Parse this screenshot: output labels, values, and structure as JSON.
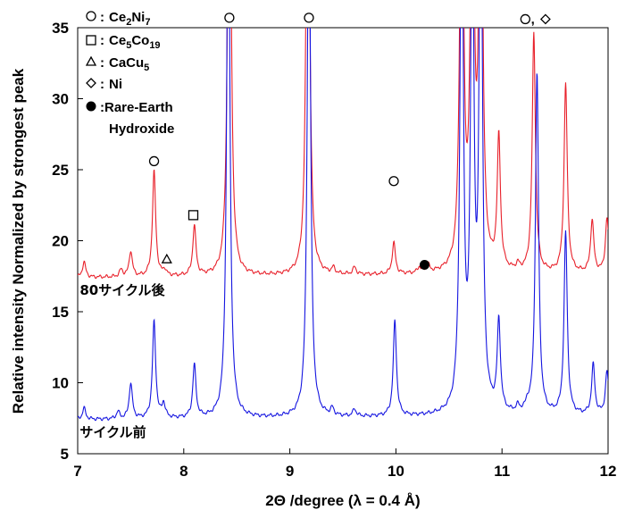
{
  "chart_data": {
    "type": "line",
    "title": "",
    "xlabel": "2Θ /degree (λ = 0.4 Å)",
    "ylabel": "Relative intensity Normalized by strongest peak",
    "xlim": [
      7,
      12
    ],
    "ylim": [
      5,
      35
    ],
    "xticks": [
      7,
      8,
      9,
      10,
      11,
      12
    ],
    "yticks": [
      5,
      10,
      15,
      20,
      25,
      30,
      35
    ],
    "grid": false,
    "legend": {
      "placement": "top-left",
      "entries": [
        {
          "symbol": "circle",
          "label": "Ce2Ni7",
          "base": "Ce",
          "sub1": "2",
          "mid": "Ni",
          "sub2": "7"
        },
        {
          "symbol": "square",
          "label": "Ce5Co19",
          "base": "Ce",
          "sub1": "5",
          "mid": "Co",
          "sub2": "19"
        },
        {
          "symbol": "triangle",
          "label": "CaCu5",
          "base": "CaCu",
          "sub1": "5",
          "mid": "",
          "sub2": ""
        },
        {
          "symbol": "diamond",
          "label": "Ni",
          "base": "Ni",
          "sub1": "",
          "mid": "",
          "sub2": ""
        },
        {
          "symbol": "filled-circle",
          "label": "Rare-Earth Hydroxide",
          "line1": "Rare-Earth",
          "line2": "Hydroxide"
        }
      ],
      "separator": ":"
    },
    "series": [
      {
        "name": "80サイクル後",
        "color": "#e8202a",
        "baseline": 17.4,
        "peaks": [
          {
            "x": 7.06,
            "h": 1.1
          },
          {
            "x": 7.41,
            "h": 0.5
          },
          {
            "x": 7.5,
            "h": 1.8
          },
          {
            "x": 7.72,
            "h": 7.4
          },
          {
            "x": 7.82,
            "h": 0.4
          },
          {
            "x": 8.1,
            "h": 3.5
          },
          {
            "x": 8.43,
            "h": 40
          },
          {
            "x": 9.17,
            "h": 40
          },
          {
            "x": 9.41,
            "h": 0.4
          },
          {
            "x": 9.61,
            "h": 0.5
          },
          {
            "x": 9.98,
            "h": 2.2
          },
          {
            "x": 10.22,
            "h": 0.4
          },
          {
            "x": 10.3,
            "h": 0.6
          },
          {
            "x": 10.62,
            "h": 38
          },
          {
            "x": 10.72,
            "h": 36
          },
          {
            "x": 10.8,
            "h": 40
          },
          {
            "x": 10.97,
            "h": 9.3
          },
          {
            "x": 11.15,
            "h": 0.4
          },
          {
            "x": 11.3,
            "h": 16.8
          },
          {
            "x": 11.6,
            "h": 13.3
          },
          {
            "x": 11.85,
            "h": 3.7
          },
          {
            "x": 11.99,
            "h": 3.8
          }
        ]
      },
      {
        "name": "サイクル前",
        "color": "#1515e0",
        "baseline": 7.4,
        "peaks": [
          {
            "x": 7.06,
            "h": 0.8
          },
          {
            "x": 7.38,
            "h": 0.5
          },
          {
            "x": 7.5,
            "h": 2.5
          },
          {
            "x": 7.72,
            "h": 6.8
          },
          {
            "x": 7.81,
            "h": 1.0
          },
          {
            "x": 8.1,
            "h": 3.7
          },
          {
            "x": 8.42,
            "h": 40
          },
          {
            "x": 9.18,
            "h": 40
          },
          {
            "x": 9.4,
            "h": 0.5
          },
          {
            "x": 9.61,
            "h": 0.5
          },
          {
            "x": 9.99,
            "h": 6.7
          },
          {
            "x": 10.62,
            "h": 40
          },
          {
            "x": 10.72,
            "h": 36
          },
          {
            "x": 10.8,
            "h": 40
          },
          {
            "x": 10.97,
            "h": 6.3
          },
          {
            "x": 11.15,
            "h": 0.4
          },
          {
            "x": 11.24,
            "h": 0.5
          },
          {
            "x": 11.33,
            "h": 24
          },
          {
            "x": 11.6,
            "h": 12.8
          },
          {
            "x": 11.86,
            "h": 3.5
          },
          {
            "x": 11.99,
            "h": 3.0
          }
        ]
      }
    ],
    "markers": [
      {
        "symbol": "circle",
        "x": 7.72,
        "y": 25.6
      },
      {
        "symbol": "square",
        "x": 8.09,
        "y": 21.8
      },
      {
        "symbol": "triangle",
        "x": 7.84,
        "y": 18.7
      },
      {
        "symbol": "circle",
        "x": 8.43,
        "y": 35.7
      },
      {
        "symbol": "circle",
        "x": 9.18,
        "y": 35.7
      },
      {
        "symbol": "circle",
        "x": 9.98,
        "y": 24.2
      },
      {
        "symbol": "filled-circle",
        "x": 10.27,
        "y": 18.3
      },
      {
        "symbol": "circle",
        "x": 11.22,
        "y": 35.6
      },
      {
        "symbol": "diamond",
        "x": 11.41,
        "y": 35.6
      }
    ],
    "marker_joiner": {
      "text": ",",
      "x": 11.29,
      "y": 35.6
    },
    "annotations": [
      {
        "text": "80サイクル後",
        "x": 7.02,
        "y": 16.2
      },
      {
        "text": "サイクル前",
        "x": 7.02,
        "y": 6.2
      }
    ]
  }
}
